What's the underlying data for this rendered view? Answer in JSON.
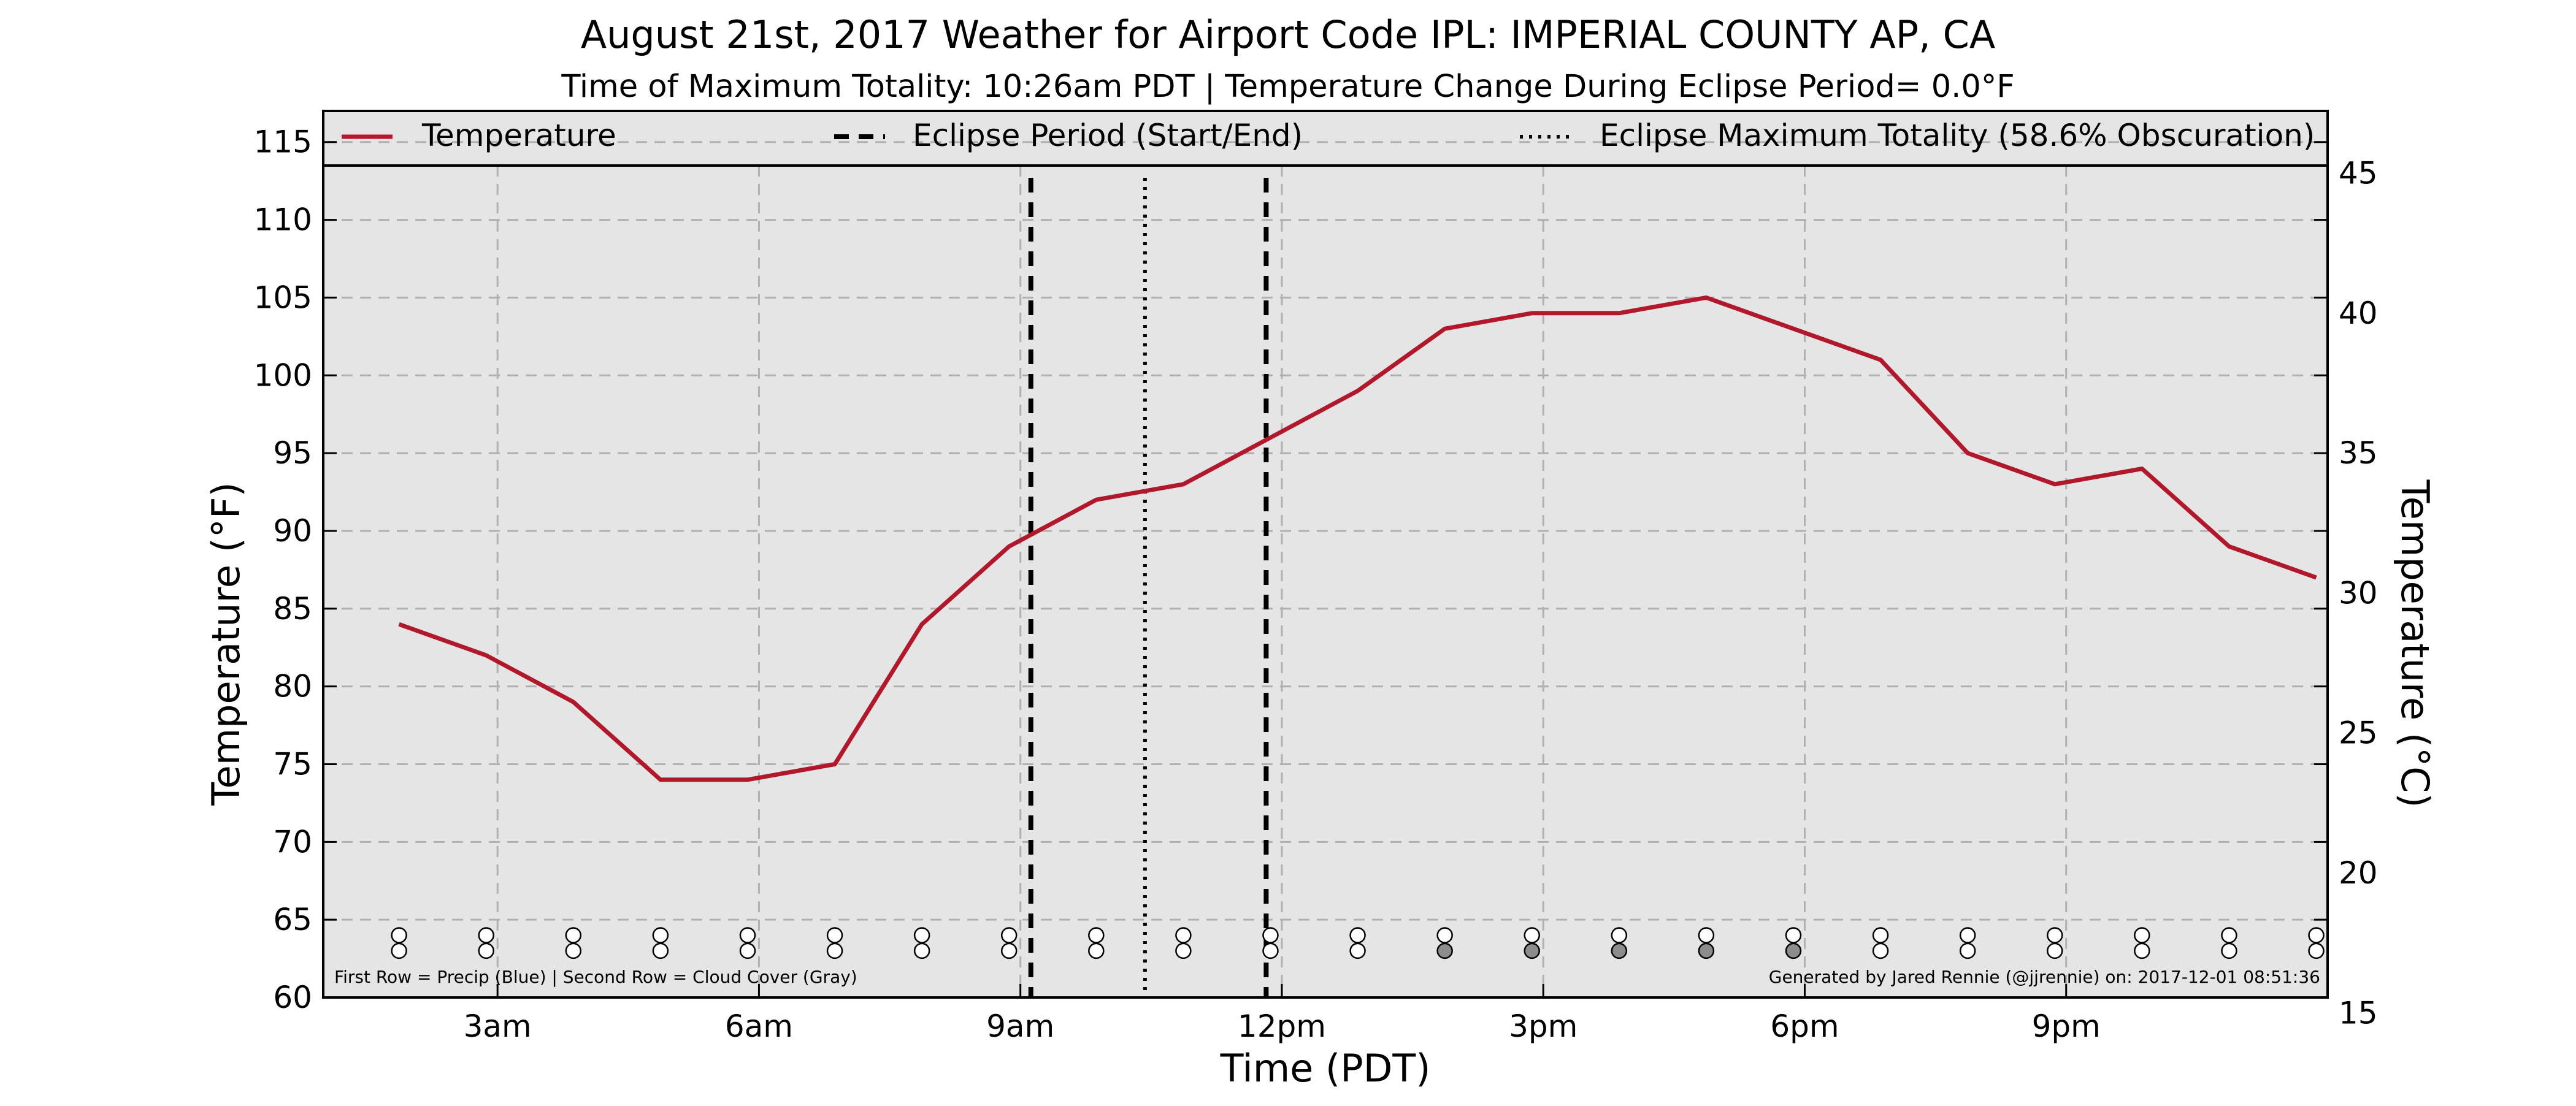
{
  "chart_data": {
    "type": "line",
    "title": "August 21st, 2017 Weather for Airport Code IPL: IMPERIAL COUNTY AP, CA",
    "subtitle": "Time of Maximum Totality: 10:26am PDT | Temperature Change During Eclipse Period= 0.0°F",
    "xlabel": "Time (PDT)",
    "ylabel": "Temperature (°F)",
    "ylabel_right": "Temperature (°C)",
    "xlim": [
      1.0,
      24.0
    ],
    "ylim": [
      60,
      117
    ],
    "ylim_right_c": [
      15.56,
      47.22
    ],
    "x_ticks": [
      {
        "x": 3,
        "label": "3am"
      },
      {
        "x": 6,
        "label": "6am"
      },
      {
        "x": 9,
        "label": "9am"
      },
      {
        "x": 12,
        "label": "12pm"
      },
      {
        "x": 15,
        "label": "3pm"
      },
      {
        "x": 18,
        "label": "6pm"
      },
      {
        "x": 21,
        "label": "9pm"
      }
    ],
    "y_ticks": [
      60,
      65,
      70,
      75,
      80,
      85,
      90,
      95,
      100,
      105,
      110,
      115
    ],
    "y_ticks_right": [
      15,
      20,
      25,
      30,
      35,
      40,
      45
    ],
    "grid": true,
    "legend_position": "top",
    "series": [
      {
        "name": "Temperature",
        "color": "#b2182b",
        "x": [
          1.87,
          2.87,
          3.87,
          4.87,
          5.87,
          6.87,
          7.87,
          8.87,
          9.87,
          10.87,
          11.87,
          12.87,
          13.87,
          14.87,
          15.87,
          16.87,
          17.87,
          18.87,
          19.87,
          20.87,
          21.87,
          22.87,
          23.87
        ],
        "values": [
          84,
          82,
          79,
          74,
          74,
          75,
          84,
          89,
          92,
          93,
          96,
          99,
          103,
          104,
          104,
          105,
          103,
          101,
          95,
          93,
          94,
          89,
          87
        ]
      }
    ],
    "eclipse_period": {
      "label": "Eclipse Period (Start/End)",
      "start": 9.12,
      "end": 11.82
    },
    "eclipse_max": {
      "label": "Eclipse Maximum Totality (58.6% Obscuration)",
      "time": 10.43
    },
    "indicator_rows": {
      "x": [
        1.87,
        2.87,
        3.87,
        4.87,
        5.87,
        6.87,
        7.87,
        8.87,
        9.87,
        10.87,
        11.87,
        12.87,
        13.87,
        14.87,
        15.87,
        16.87,
        17.87,
        18.87,
        19.87,
        20.87,
        21.87,
        22.87,
        23.87
      ],
      "row1_temp_f": 64,
      "row2_temp_f": 63,
      "precip": [
        0,
        0,
        0,
        0,
        0,
        0,
        0,
        0,
        0,
        0,
        0,
        0,
        0,
        0,
        0,
        0,
        0,
        0,
        0,
        0,
        0,
        0,
        0
      ],
      "cloud_cover": [
        0,
        0,
        0,
        0,
        0,
        0,
        0,
        0,
        0,
        0,
        0,
        0,
        1,
        1,
        1,
        1,
        1,
        0,
        0,
        0,
        0,
        0,
        0
      ],
      "cloud_fill": "#8c8c8c"
    },
    "footnote_left": "First Row = Precip (Blue) | Second Row = Cloud Cover (Gray)",
    "footnote_right": "Generated by Jared Rennie (@jjrennie) on: 2017-12-01 08:51:36",
    "colors": {
      "plot_background": "#e5e5e5",
      "grid": "#b0b0b0",
      "temperature_line": "#b2182b",
      "eclipse_lines": "#000000"
    }
  }
}
